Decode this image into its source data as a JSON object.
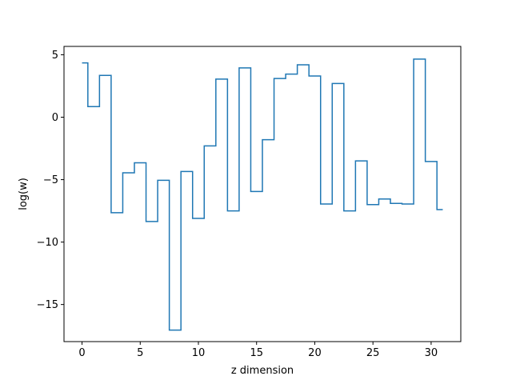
{
  "chart_data": {
    "type": "line",
    "drawstyle": "steps-mid",
    "xlabel": "z dimension",
    "ylabel": "log(w)",
    "xlim": [
      -1.55,
      32.55
    ],
    "ylim": [
      -17.97,
      5.67
    ],
    "xticks": [
      0,
      5,
      10,
      15,
      20,
      25,
      30
    ],
    "yticks": [
      5,
      0,
      -5,
      -10,
      -15
    ],
    "xtick_labels": [
      "0",
      "5",
      "10",
      "15",
      "20",
      "25",
      "30"
    ],
    "ytick_labels": [
      "5",
      "0",
      "−5",
      "−10",
      "−15"
    ],
    "grid": false,
    "color": "#1f77b4",
    "series": [
      {
        "x": [
          0,
          1,
          2,
          3,
          4,
          5,
          6,
          7,
          8,
          9,
          10,
          11,
          12,
          13,
          14,
          15,
          16,
          17,
          18,
          19,
          20,
          21,
          22,
          23,
          24,
          25,
          26,
          27,
          28,
          29,
          30,
          31
        ],
        "values": [
          4.35,
          0.85,
          3.35,
          -7.65,
          -4.45,
          -3.65,
          -8.35,
          -5.05,
          -17.05,
          -4.35,
          -8.1,
          -2.3,
          3.05,
          -7.5,
          3.95,
          -5.95,
          -1.8,
          3.1,
          3.45,
          4.2,
          3.3,
          -6.95,
          2.7,
          -7.5,
          -3.5,
          -7.0,
          -6.55,
          -6.9,
          -6.95,
          4.65,
          -3.55,
          -7.4
        ]
      }
    ]
  }
}
